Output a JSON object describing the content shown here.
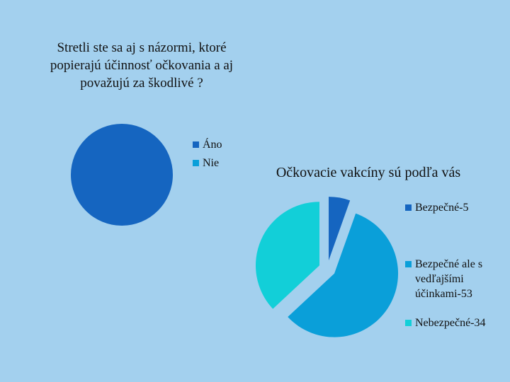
{
  "chart_data": [
    {
      "type": "pie",
      "title": "Stretli ste sa aj s názormi, ktoré popierajú účinnosť očkovania a aj považujú za škodlivé ?",
      "categories": [
        "Áno",
        "Nie"
      ],
      "values": [
        100,
        0
      ],
      "colors": [
        "#1565c0",
        "#0a9fd9"
      ]
    },
    {
      "type": "pie",
      "title": "Očkovacie vakcíny sú podľa vás",
      "categories": [
        "Bezpečné-5",
        "Bezpečné ale s vedľajšími účinkami-53",
        "Nebezpečné-34"
      ],
      "values": [
        5,
        53,
        34
      ],
      "colors": [
        "#1565c0",
        "#0a9fd9",
        "#12cfd8"
      ]
    }
  ]
}
